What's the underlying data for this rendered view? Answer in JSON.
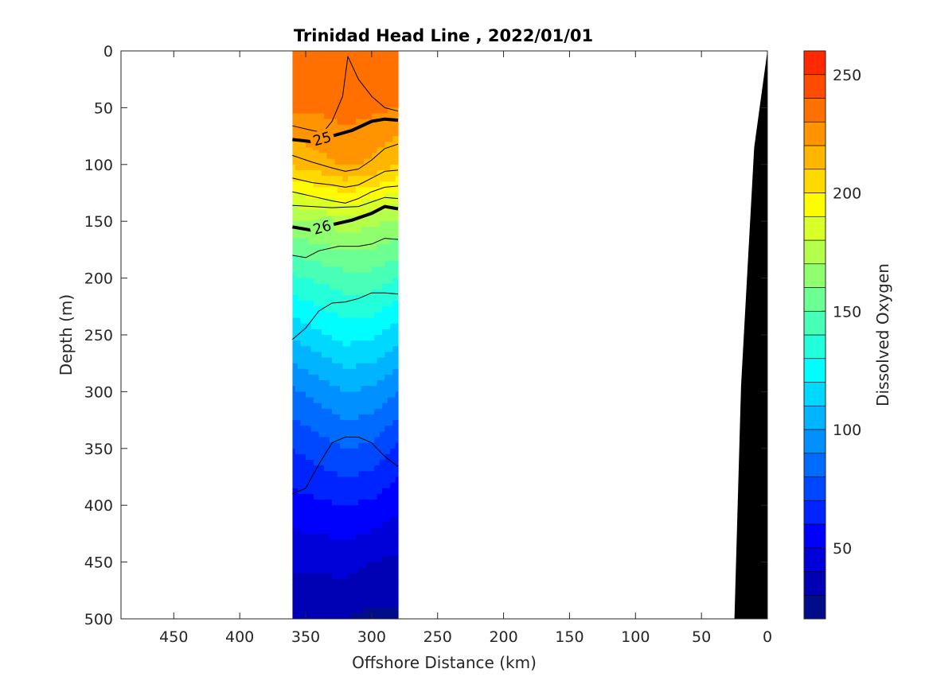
{
  "chart_data": {
    "type": "heatmap",
    "title": "Trinidad Head Line , 2022/01/01",
    "xlabel": "Offshore Distance (km)",
    "ylabel": "Depth (m)",
    "colorbar_label": "Dissolved Oxygen",
    "xlim": [
      490,
      0
    ],
    "x_reversed": true,
    "ylim": [
      0,
      500
    ],
    "y_reversed": true,
    "x_ticks": [
      450,
      400,
      350,
      300,
      250,
      200,
      150,
      100,
      50,
      0
    ],
    "y_ticks": [
      0,
      50,
      100,
      150,
      200,
      250,
      300,
      350,
      400,
      450,
      500
    ],
    "colorbar": {
      "range": [
        20,
        260
      ],
      "levels": [
        20,
        30,
        40,
        50,
        60,
        70,
        80,
        90,
        100,
        110,
        120,
        130,
        140,
        150,
        160,
        170,
        180,
        190,
        200,
        210,
        220,
        230,
        240,
        250,
        260
      ],
      "colors": [
        "#000c8a",
        "#0000b4",
        "#0000d8",
        "#0000fd",
        "#0024ff",
        "#0048ff",
        "#006cff",
        "#0090ff",
        "#00b4ff",
        "#00d8ff",
        "#00fdff",
        "#24ffdb",
        "#48ffb7",
        "#6cff93",
        "#90ff6f",
        "#b4ff4b",
        "#d8ff27",
        "#fdfc03",
        "#ffd900",
        "#ffb600",
        "#ff9300",
        "#ff7000",
        "#ff4c00",
        "#ff2900",
        "#e60000",
        "#bf0000",
        "#990000"
      ],
      "ticks": [
        50,
        100,
        150,
        200,
        250
      ],
      "tick_labels": [
        "50",
        "100",
        "150",
        "200",
        "250"
      ]
    },
    "data_extent_km": [
      360,
      280
    ],
    "section": {
      "distances_km": [
        360,
        340,
        320,
        300,
        280
      ],
      "depths_m": [
        0,
        50,
        100,
        150,
        200,
        250,
        300,
        350,
        400,
        450,
        500
      ],
      "oxygen": [
        [
          232,
          233,
          236,
          233,
          232
        ],
        [
          231,
          232,
          234,
          232,
          230
        ],
        [
          212,
          216,
          222,
          218,
          210
        ],
        [
          168,
          172,
          176,
          173,
          168
        ],
        [
          138,
          142,
          146,
          146,
          140
        ],
        [
          112,
          118,
          124,
          122,
          114
        ],
        [
          88,
          94,
          100,
          98,
          90
        ],
        [
          70,
          75,
          80,
          78,
          68
        ],
        [
          56,
          58,
          60,
          58,
          52
        ],
        [
          42,
          42,
          44,
          40,
          38
        ],
        [
          30,
          32,
          30,
          27,
          28
        ]
      ]
    },
    "density_contours": [
      {
        "label": "25",
        "emphasized": true,
        "points": [
          [
            360,
            78
          ],
          [
            345,
            80
          ],
          [
            330,
            75
          ],
          [
            315,
            70
          ],
          [
            300,
            62
          ],
          [
            290,
            60
          ],
          [
            280,
            61
          ]
        ]
      },
      {
        "label": "26",
        "emphasized": true,
        "points": [
          [
            360,
            155
          ],
          [
            345,
            158
          ],
          [
            330,
            153
          ],
          [
            315,
            149
          ],
          [
            300,
            143
          ],
          [
            290,
            137
          ],
          [
            280,
            139
          ]
        ]
      },
      {
        "label": "",
        "emphasized": false,
        "points": [
          [
            360,
            66
          ],
          [
            345,
            70
          ],
          [
            337,
            72
          ],
          [
            330,
            62
          ],
          [
            322,
            40
          ],
          [
            318,
            5
          ],
          [
            310,
            25
          ],
          [
            300,
            40
          ],
          [
            290,
            50
          ],
          [
            280,
            53
          ]
        ]
      },
      {
        "label": "",
        "emphasized": false,
        "points": [
          [
            360,
            92
          ],
          [
            345,
            98
          ],
          [
            330,
            103
          ],
          [
            320,
            106
          ],
          [
            310,
            104
          ],
          [
            300,
            96
          ],
          [
            290,
            86
          ],
          [
            280,
            82
          ]
        ]
      },
      {
        "label": "",
        "emphasized": false,
        "points": [
          [
            360,
            112
          ],
          [
            345,
            116
          ],
          [
            330,
            118
          ],
          [
            320,
            120
          ],
          [
            310,
            118
          ],
          [
            300,
            112
          ],
          [
            290,
            106
          ],
          [
            280,
            105
          ]
        ]
      },
      {
        "label": "",
        "emphasized": false,
        "points": [
          [
            360,
            124
          ],
          [
            345,
            128
          ],
          [
            330,
            132
          ],
          [
            320,
            134
          ],
          [
            310,
            130
          ],
          [
            300,
            124
          ],
          [
            290,
            120
          ],
          [
            280,
            119
          ]
        ]
      },
      {
        "label": "",
        "emphasized": false,
        "points": [
          [
            360,
            136
          ],
          [
            345,
            137
          ],
          [
            330,
            138
          ],
          [
            310,
            137
          ],
          [
            300,
            133
          ],
          [
            290,
            129
          ],
          [
            280,
            130
          ]
        ]
      },
      {
        "label": "",
        "emphasized": false,
        "points": [
          [
            360,
            180
          ],
          [
            350,
            182
          ],
          [
            340,
            176
          ],
          [
            325,
            172
          ],
          [
            310,
            172
          ],
          [
            300,
            170
          ],
          [
            290,
            165
          ],
          [
            280,
            166
          ]
        ]
      },
      {
        "label": "",
        "emphasized": false,
        "points": [
          [
            360,
            254
          ],
          [
            350,
            244
          ],
          [
            340,
            229
          ],
          [
            330,
            222
          ],
          [
            320,
            221
          ],
          [
            310,
            218
          ],
          [
            300,
            213
          ],
          [
            290,
            213
          ],
          [
            280,
            214
          ]
        ]
      },
      {
        "label": "",
        "emphasized": false,
        "points": [
          [
            360,
            390
          ],
          [
            350,
            385
          ],
          [
            340,
            364
          ],
          [
            330,
            345
          ],
          [
            320,
            340
          ],
          [
            310,
            340
          ],
          [
            300,
            345
          ],
          [
            290,
            357
          ],
          [
            280,
            366
          ]
        ]
      }
    ],
    "bathymetry": {
      "color": "#000000",
      "points": [
        [
          0,
          0
        ],
        [
          10,
          85
        ],
        [
          20,
          295
        ],
        [
          25,
          500
        ]
      ]
    }
  }
}
